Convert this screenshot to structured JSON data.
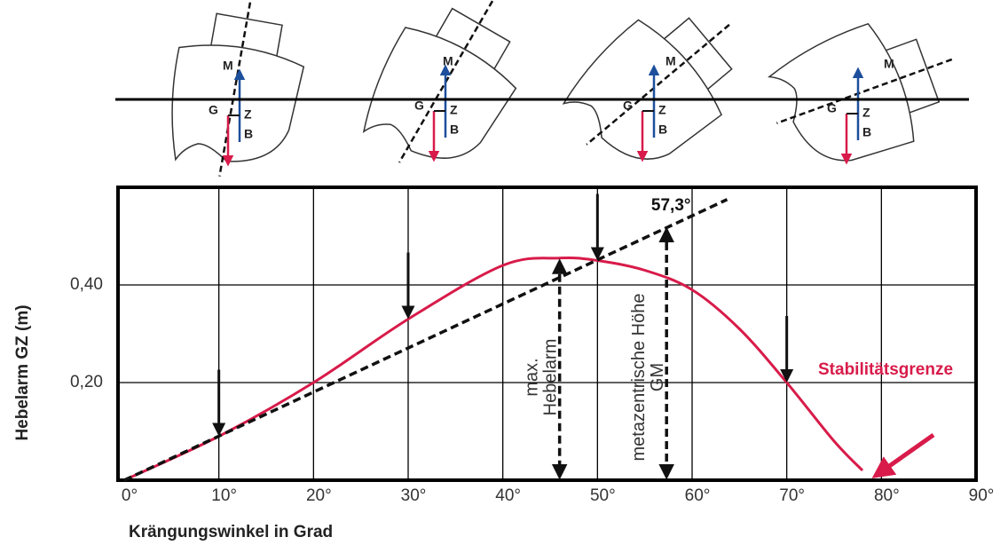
{
  "chart_data": {
    "type": "line",
    "x_label": "Krängungswinkel in Grad",
    "y_label": "Hebelarm GZ (m)",
    "xlim": [
      0,
      90
    ],
    "ylim": [
      0,
      0.6
    ],
    "xticks": [
      {
        "value": 0,
        "label": "0°"
      },
      {
        "value": 10,
        "label": "10°"
      },
      {
        "value": 20,
        "label": "20°"
      },
      {
        "value": 30,
        "label": "30°"
      },
      {
        "value": 40,
        "label": "40°"
      },
      {
        "value": 50,
        "label": "50°"
      },
      {
        "value": 60,
        "label": "60°"
      },
      {
        "value": 70,
        "label": "70°"
      },
      {
        "value": 80,
        "label": "80°"
      },
      {
        "value": 90,
        "label": "90°"
      }
    ],
    "yticks": [
      {
        "value": 0.2,
        "label": "0,20"
      },
      {
        "value": 0.4,
        "label": "0,40"
      }
    ],
    "grid": true,
    "series": [
      {
        "color": "#d81b4a",
        "x": [
          0,
          10,
          20,
          30,
          40,
          46,
          50,
          55,
          60,
          65,
          70,
          75,
          78
        ],
        "values": [
          0,
          0.09,
          0.2,
          0.33,
          0.44,
          0.455,
          0.45,
          0.43,
          0.39,
          0.31,
          0.2,
          0.08,
          0.02
        ]
      },
      {
        "color": "#111111",
        "x": [
          0,
          63.7
        ],
        "values": [
          0,
          0.575
        ]
      }
    ],
    "arrow_angles": [
      10,
      30,
      50,
      70
    ],
    "max_lever": {
      "angle": 46,
      "value": 0.455,
      "label": "max. Hebelarm"
    },
    "gm": {
      "angle": 57.3,
      "value": 0.52,
      "label": "metazentrische Höhe GM",
      "angle_label": "57,3°"
    },
    "limit_label": "Stabilitätsgrenze",
    "diagram_labels": [
      "M",
      "G",
      "Z",
      "B"
    ]
  }
}
